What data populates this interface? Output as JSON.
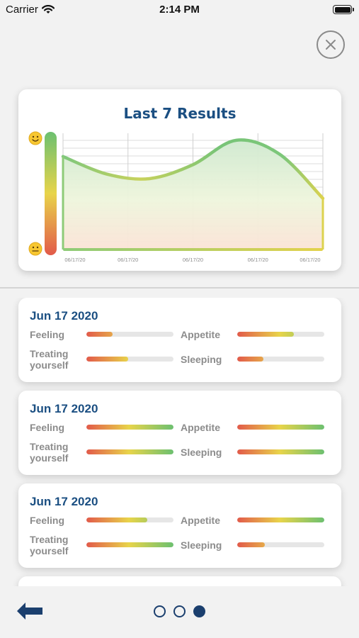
{
  "status_bar": {
    "carrier": "Carrier",
    "time": "2:14 PM"
  },
  "chart_card": {
    "title": "Last 7 Results"
  },
  "chart_data": {
    "type": "area",
    "title": "Last 7 Results",
    "x_labels": [
      "06/17/20",
      "06/17/20",
      "06/17/20",
      "06/17/20",
      "06/17/20"
    ],
    "values": [
      0.8,
      0.65,
      0.61,
      0.73,
      0.94,
      0.82,
      0.44
    ],
    "ylim": [
      0,
      1
    ],
    "grid": true,
    "colors": {
      "good": "#6cc070",
      "mid": "#e8d44a",
      "bad": "#e25a4a"
    }
  },
  "entries": [
    {
      "date": "Jun 17 2020",
      "feeling_label": "Feeling",
      "appetite_label": "Appetite",
      "treating_label": "Treating yourself",
      "sleeping_label": "Sleeping",
      "feeling": 0.3,
      "appetite": 0.65,
      "treating": 0.48,
      "sleeping": 0.3
    },
    {
      "date": "Jun 17 2020",
      "feeling_label": "Feeling",
      "appetite_label": "Appetite",
      "treating_label": "Treating yourself",
      "sleeping_label": "Sleeping",
      "feeling": 1.0,
      "appetite": 1.0,
      "treating": 1.0,
      "sleeping": 1.0
    },
    {
      "date": "Jun 17 2020",
      "feeling_label": "Feeling",
      "appetite_label": "Appetite",
      "treating_label": "Treating yourself",
      "sleeping_label": "Sleeping",
      "feeling": 0.7,
      "appetite": 1.0,
      "treating": 1.0,
      "sleeping": 0.32
    }
  ],
  "pager": {
    "total": 3,
    "active": 2
  },
  "icons": {
    "close": "close-icon",
    "back": "back-arrow-icon",
    "happy": "happy-face-icon",
    "neutral": "neutral-face-icon",
    "wifi": "wifi-icon",
    "battery": "battery-icon"
  },
  "colors": {
    "accent": "#1b4f82",
    "dark_blue": "#1b3f6e"
  }
}
